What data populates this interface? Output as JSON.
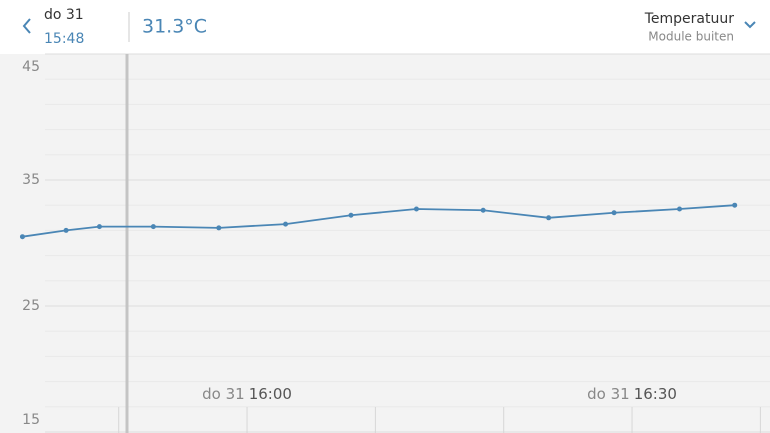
{
  "header": {
    "date": "do 31",
    "time": "15:48",
    "reading": "31.3°C",
    "metric": "Temperatuur",
    "module": "Module buiten"
  },
  "chart_data": {
    "type": "line",
    "x": [
      "15:42:30",
      "15:45:54",
      "15:48:30",
      "15:52:42",
      "15:57:48",
      "16:03:00",
      "16:08:06",
      "16:13:12",
      "16:18:24",
      "16:23:30",
      "16:28:36",
      "16:33:42",
      "16:38:00"
    ],
    "values": [
      30.5,
      31.0,
      31.3,
      31.3,
      31.2,
      31.5,
      32.2,
      32.7,
      32.6,
      32.0,
      32.4,
      32.7,
      33.0
    ],
    "color": "#4a86b5",
    "xlim": [
      "15:40:45",
      "16:40:45"
    ],
    "xticks": [
      {
        "day": "do 31",
        "time": "16:00"
      },
      {
        "day": "do 31",
        "time": "16:30"
      }
    ],
    "xminor": [
      "15:50",
      "16:10",
      "16:20",
      "16:40"
    ],
    "ylim": [
      15,
      45
    ],
    "yticks": [
      15,
      25,
      35,
      45
    ],
    "yminor": [
      17,
      19,
      21,
      23,
      27,
      29,
      31,
      33,
      37,
      39,
      41,
      43
    ]
  }
}
